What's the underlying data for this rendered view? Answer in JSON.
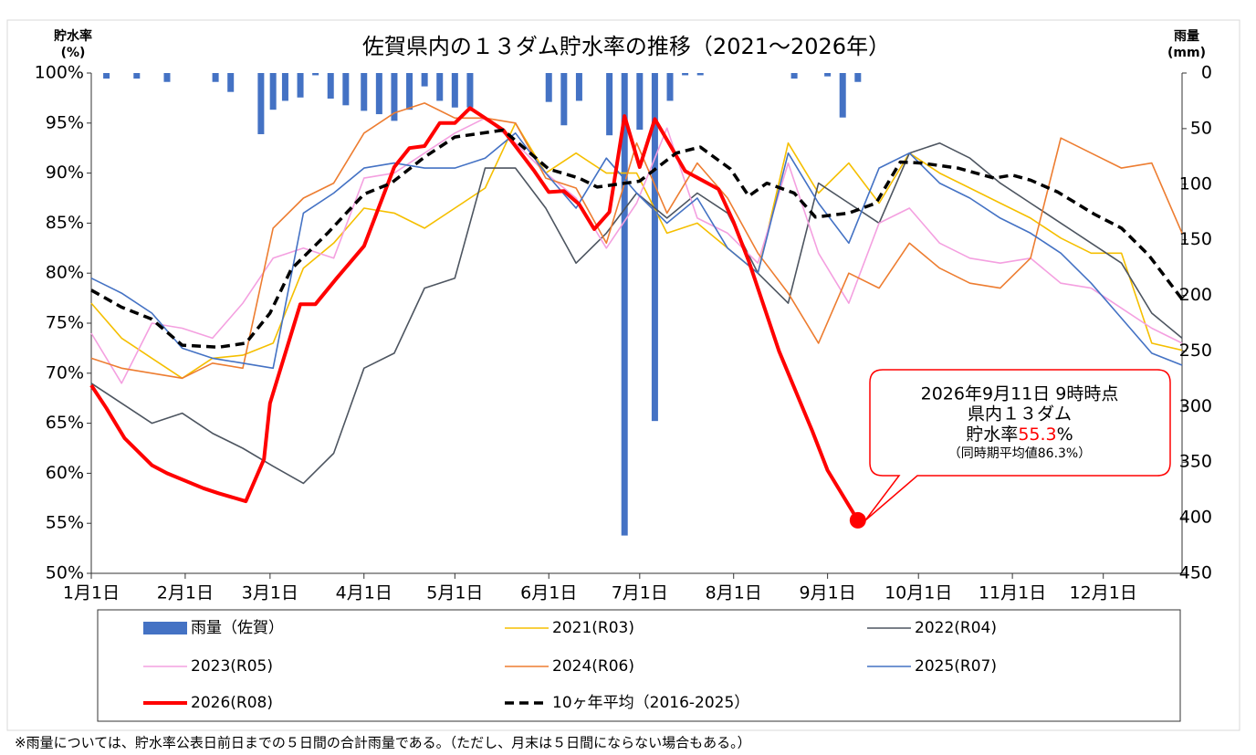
{
  "chart_data": {
    "type": "bar_line",
    "title": "佐賀県内の１３ダム貯水率の推移（2021～2026年）",
    "y_label": [
      "貯水率",
      "(%)"
    ],
    "y2_label": [
      "雨量",
      "(mm)"
    ],
    "footnote": "※雨量については、貯水率公表日前日までの５日間の合計雨量である。（ただし、月末は５日間にならない場合もある。）",
    "xlim": [
      0,
      360
    ],
    "xticks": [
      {
        "value": 0,
        "label": "1月1日"
      },
      {
        "value": 31,
        "label": "2月1日"
      },
      {
        "value": 59,
        "label": "3月1日"
      },
      {
        "value": 90,
        "label": "4月1日"
      },
      {
        "value": 120,
        "label": "5月1日"
      },
      {
        "value": 151,
        "label": "6月1日"
      },
      {
        "value": 181,
        "label": "7月1日"
      },
      {
        "value": 212,
        "label": "8月1日"
      },
      {
        "value": 243,
        "label": "9月1日"
      },
      {
        "value": 273,
        "label": "10月1日"
      },
      {
        "value": 304,
        "label": "11月1日"
      },
      {
        "value": 334,
        "label": "12月1日"
      }
    ],
    "ylim": [
      50,
      100
    ],
    "yticks": [
      {
        "value": 50,
        "label": "50%"
      },
      {
        "value": 55,
        "label": "55%"
      },
      {
        "value": 60,
        "label": "60%"
      },
      {
        "value": 65,
        "label": "65%"
      },
      {
        "value": 70,
        "label": "70%"
      },
      {
        "value": 75,
        "label": "75%"
      },
      {
        "value": 80,
        "label": "80%"
      },
      {
        "value": 85,
        "label": "85%"
      },
      {
        "value": 90,
        "label": "90%"
      },
      {
        "value": 95,
        "label": "95%"
      },
      {
        "value": 100,
        "label": "100%"
      }
    ],
    "y2lim": [
      450,
      0
    ],
    "y2ticks": [
      0,
      50,
      100,
      150,
      200,
      250,
      300,
      350,
      400,
      450
    ],
    "x": [
      0,
      10,
      20,
      30,
      40,
      50,
      60,
      70,
      80,
      90,
      100,
      110,
      120,
      130,
      140,
      150,
      160,
      170,
      180,
      190,
      200,
      210,
      220,
      230,
      240,
      250,
      260,
      270,
      280,
      290,
      300,
      310,
      320,
      330,
      340,
      350,
      360
    ],
    "series": [
      {
        "name": "雨量（佐賀）",
        "kind": "bar",
        "axis": "y2",
        "color": "#4472c4",
        "x": [
          5,
          15,
          25,
          41,
          46,
          56,
          60,
          64,
          69,
          74,
          79,
          84,
          90,
          95,
          100,
          105,
          110,
          115,
          120,
          125,
          151,
          156,
          161,
          171,
          176,
          181,
          186,
          191,
          196,
          201,
          232,
          243,
          248,
          253
        ],
        "values": [
          5,
          5,
          8,
          8,
          17,
          55,
          33,
          25,
          22,
          2,
          23,
          29,
          34,
          37,
          43,
          33,
          12,
          25,
          31,
          31,
          26,
          47,
          25,
          56,
          416,
          51,
          313,
          25,
          2,
          2,
          5,
          3,
          40,
          8
        ]
      },
      {
        "name": "2021(R03)",
        "kind": "line",
        "color": "#f5bf00",
        "values": [
          77,
          73.5,
          71.5,
          69.5,
          71.5,
          71.8,
          73,
          80.5,
          83,
          86.5,
          86,
          84.5,
          86.5,
          88.5,
          95,
          90,
          92,
          90,
          90,
          84,
          85,
          82.5,
          80,
          93,
          88,
          91,
          87,
          92,
          90,
          88.5,
          87,
          85.5,
          83.5,
          82,
          82,
          73,
          72.3
        ]
      },
      {
        "name": "2022(R04)",
        "kind": "line",
        "color": "#4d5560",
        "values": [
          69,
          67,
          65,
          66,
          64,
          62.5,
          60.7,
          59,
          62,
          70.5,
          72,
          78.5,
          79.5,
          90.5,
          90.5,
          86.5,
          81,
          84,
          88,
          85.5,
          88,
          86,
          80,
          77,
          89,
          87,
          85,
          92,
          93,
          91.5,
          89,
          87,
          85,
          83,
          81,
          76,
          73.5
        ]
      },
      {
        "name": "2023(R05)",
        "kind": "line",
        "color": "#f4a0e0",
        "values": [
          74,
          69,
          75,
          74.5,
          73.5,
          77,
          81.5,
          82.5,
          81.5,
          89.5,
          90,
          92,
          94,
          95.5,
          93,
          90,
          87.5,
          82.5,
          87,
          94.5,
          85.5,
          84,
          81,
          91,
          82,
          77,
          85,
          86.5,
          83,
          81.5,
          81,
          81.5,
          79,
          78.5,
          76.5,
          74.5,
          73
        ]
      },
      {
        "name": "2024(R06)",
        "kind": "line",
        "color": "#ed7d31",
        "values": [
          71.5,
          70.5,
          70,
          69.5,
          71,
          70.5,
          84.5,
          87.5,
          89,
          94,
          96,
          97,
          95.5,
          95.5,
          95,
          89.5,
          88.5,
          83,
          93,
          86,
          91,
          87.5,
          82,
          78,
          73,
          80,
          78.5,
          83,
          80.5,
          79,
          78.5,
          81.5,
          93.5,
          92,
          90.5,
          91,
          84
        ]
      },
      {
        "name": "2025(R07)",
        "kind": "line",
        "color": "#4472c4",
        "values": [
          79.5,
          78,
          76,
          72.5,
          71.5,
          71,
          70.5,
          86,
          88,
          90.5,
          91,
          90.5,
          90.5,
          91.5,
          94,
          90,
          86.5,
          91.5,
          88,
          85,
          87.5,
          82.5,
          80,
          92,
          87,
          83,
          90.5,
          92,
          89,
          87.5,
          85.5,
          84,
          82,
          79,
          75.5,
          72,
          70.8
        ]
      },
      {
        "name": "2026(R08)",
        "kind": "line",
        "style": "bold",
        "color": "#ff0000",
        "x": [
          0,
          5,
          11,
          20,
          25,
          37,
          42,
          51,
          57,
          59,
          69,
          74,
          81,
          90,
          100,
          105,
          110,
          115,
          120,
          125,
          136,
          146,
          151,
          156,
          161,
          166,
          171,
          176,
          181,
          186,
          196,
          207,
          212,
          217,
          227,
          238,
          243,
          253
        ],
        "values": [
          68.8,
          66.5,
          63.5,
          60.8,
          60,
          58.5,
          58,
          57.2,
          61.4,
          67,
          76.9,
          76.9,
          79.5,
          82.7,
          90.6,
          92.5,
          92.7,
          95,
          95,
          96.5,
          94.3,
          90.3,
          88.1,
          88.2,
          86.9,
          84.4,
          86.1,
          95.7,
          90.6,
          95.4,
          90.2,
          88.4,
          85.1,
          81.2,
          72.2,
          64.2,
          60.3,
          55.3
        ]
      },
      {
        "name": "10ヶ年平均（2016-2025）",
        "kind": "line",
        "style": "dashed",
        "color": "#000000",
        "x": [
          0,
          10,
          20,
          30,
          42,
          51,
          59,
          66,
          78,
          90,
          99,
          110,
          120,
          136,
          151,
          161,
          167,
          181,
          193,
          201,
          211,
          217,
          223,
          232,
          239,
          250,
          259,
          267,
          274,
          286,
          298,
          304,
          310,
          319,
          331,
          340,
          349,
          360
        ],
        "values": [
          78.3,
          76.6,
          75.4,
          72.8,
          72.6,
          73,
          76,
          80.4,
          84,
          87.9,
          89,
          91.6,
          93.6,
          94.3,
          90.4,
          89.5,
          88.6,
          89.2,
          92,
          92.6,
          90.4,
          87.7,
          89,
          88,
          85.6,
          86,
          87,
          91.1,
          91,
          90.5,
          89.5,
          89.8,
          89.3,
          88.1,
          85.9,
          84.5,
          81.8,
          77.4
        ]
      }
    ],
    "annotation": {
      "date": "2026年9月11日 9時時点",
      "label": "県内１３ダム",
      "rate_label": "貯水率",
      "rate": 55.3,
      "rate_unit": "%",
      "note": "（同時期平均値86.3%）",
      "color": "#ff0000"
    }
  }
}
